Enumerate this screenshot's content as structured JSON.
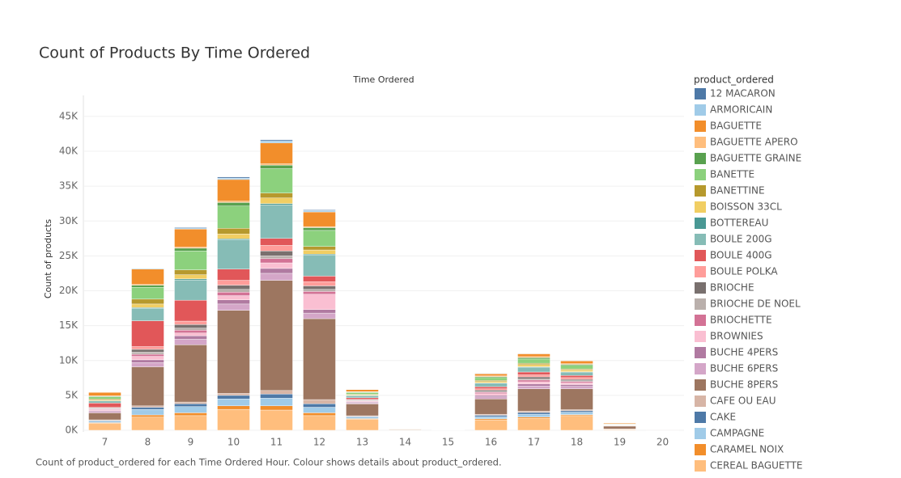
{
  "chart_data": {
    "type": "stacked_bar",
    "title": "Count of Products By Time Ordered",
    "x_label": "Time Ordered",
    "y_label": "Count of products",
    "legend_title": "product_ordered",
    "caption": "Count of product_ordered for each Time Ordered Hour.  Colour shows details about product_ordered.",
    "categories": [
      "7",
      "8",
      "9",
      "10",
      "11",
      "12",
      "13",
      "14",
      "15",
      "16",
      "17",
      "18",
      "19",
      "20"
    ],
    "ylim": [
      0,
      48000
    ],
    "yticks": [
      {
        "value": 0,
        "label": "0K"
      },
      {
        "value": 5000,
        "label": "5K"
      },
      {
        "value": 10000,
        "label": "10K"
      },
      {
        "value": 15000,
        "label": "15K"
      },
      {
        "value": 20000,
        "label": "20K"
      },
      {
        "value": 25000,
        "label": "25K"
      },
      {
        "value": 30000,
        "label": "30K"
      },
      {
        "value": 35000,
        "label": "35K"
      },
      {
        "value": 40000,
        "label": "40K"
      },
      {
        "value": 45000,
        "label": "45K"
      }
    ],
    "grid": true,
    "legend": "right",
    "series": [
      {
        "name": "12 MACARON",
        "color": "#4e79a7",
        "values": [
          0,
          50,
          100,
          150,
          150,
          100,
          20,
          0,
          0,
          30,
          40,
          30,
          0,
          0
        ]
      },
      {
        "name": "ARMORICAIN",
        "color": "#a0cbe8",
        "values": [
          0,
          100,
          150,
          200,
          300,
          200,
          30,
          0,
          0,
          50,
          60,
          50,
          0,
          0
        ]
      },
      {
        "name": "BAGUETTE",
        "color": "#f28e2b",
        "values": [
          500,
          2200,
          2600,
          3100,
          3000,
          2100,
          300,
          20,
          10,
          300,
          400,
          400,
          100,
          0
        ]
      },
      {
        "name": "BAGUETTE APERO",
        "color": "#ffbe7d",
        "values": [
          50,
          100,
          150,
          200,
          200,
          150,
          50,
          0,
          0,
          100,
          150,
          100,
          0,
          0
        ]
      },
      {
        "name": "BAGUETTE GRAINE",
        "color": "#59a14f",
        "values": [
          100,
          300,
          400,
          500,
          500,
          400,
          80,
          0,
          0,
          150,
          200,
          150,
          20,
          0
        ]
      },
      {
        "name": "BANETTE",
        "color": "#8cd17d",
        "values": [
          300,
          1700,
          2700,
          3200,
          3500,
          2300,
          250,
          20,
          10,
          400,
          600,
          500,
          50,
          0
        ]
      },
      {
        "name": "BANETTINE",
        "color": "#b6992d",
        "values": [
          150,
          700,
          700,
          800,
          700,
          500,
          80,
          0,
          0,
          150,
          200,
          150,
          20,
          0
        ]
      },
      {
        "name": "BOISSON 33CL",
        "color": "#f1ce63",
        "values": [
          100,
          500,
          600,
          700,
          800,
          600,
          100,
          10,
          0,
          200,
          300,
          250,
          20,
          0
        ]
      },
      {
        "name": "BOTTEREAU",
        "color": "#499894",
        "values": [
          30,
          100,
          150,
          150,
          200,
          150,
          20,
          0,
          0,
          50,
          60,
          50,
          0,
          0
        ]
      },
      {
        "name": "BOULE 200G",
        "color": "#86bcb6",
        "values": [
          300,
          1800,
          2900,
          4200,
          4800,
          3000,
          300,
          10,
          5,
          500,
          700,
          500,
          50,
          0
        ]
      },
      {
        "name": "BOULE 400G",
        "color": "#e15759",
        "values": [
          600,
          3700,
          3000,
          1600,
          1000,
          800,
          200,
          10,
          5,
          300,
          400,
          300,
          30,
          0
        ]
      },
      {
        "name": "BOULE POLKA",
        "color": "#ff9d9a",
        "values": [
          100,
          400,
          500,
          700,
          800,
          600,
          100,
          0,
          0,
          200,
          300,
          250,
          20,
          0
        ]
      },
      {
        "name": "BRIOCHE",
        "color": "#79706e",
        "values": [
          100,
          400,
          500,
          600,
          700,
          500,
          100,
          0,
          0,
          200,
          300,
          200,
          20,
          0
        ]
      },
      {
        "name": "BRIOCHE DE NOEL",
        "color": "#bab0ac",
        "values": [
          50,
          300,
          300,
          400,
          400,
          300,
          50,
          0,
          0,
          100,
          150,
          100,
          0,
          0
        ]
      },
      {
        "name": "BRIOCHETTE",
        "color": "#d37295",
        "values": [
          100,
          300,
          400,
          500,
          600,
          400,
          80,
          0,
          0,
          200,
          250,
          200,
          20,
          0
        ]
      },
      {
        "name": "BROWNIES",
        "color": "#fabfd2",
        "values": [
          150,
          500,
          400,
          600,
          800,
          2200,
          100,
          0,
          0,
          250,
          300,
          250,
          20,
          0
        ]
      },
      {
        "name": "BUCHE 4PERS",
        "color": "#b07aa1",
        "values": [
          100,
          400,
          500,
          600,
          700,
          500,
          100,
          0,
          0,
          200,
          300,
          250,
          20,
          0
        ]
      },
      {
        "name": "BUCHE 6PERS",
        "color": "#d4a6c8",
        "values": [
          200,
          600,
          800,
          900,
          1000,
          800,
          150,
          10,
          0,
          300,
          400,
          350,
          30,
          0
        ]
      },
      {
        "name": "BUCHE 8PERS",
        "color": "#9d7660",
        "values": [
          1000,
          5600,
          8200,
          11900,
          15800,
          11600,
          1700,
          80,
          40,
          2200,
          3200,
          3000,
          400,
          20
        ]
      },
      {
        "name": "CAFE OU EAU",
        "color": "#d7b5a6",
        "values": [
          100,
          200,
          250,
          300,
          500,
          600,
          100,
          0,
          0,
          150,
          200,
          150,
          20,
          0
        ]
      },
      {
        "name": "CAKE",
        "color": "#4e79a7",
        "values": [
          100,
          300,
          400,
          500,
          600,
          500,
          100,
          0,
          0,
          200,
          250,
          200,
          20,
          0
        ]
      },
      {
        "name": "CAMPAGNE",
        "color": "#a0cbe8",
        "values": [
          200,
          800,
          900,
          1000,
          1100,
          800,
          200,
          10,
          0,
          300,
          400,
          350,
          30,
          0
        ]
      },
      {
        "name": "CARAMEL NOIX",
        "color": "#f28e2b",
        "values": [
          100,
          300,
          400,
          500,
          600,
          400,
          80,
          0,
          0,
          150,
          200,
          150,
          20,
          0
        ]
      },
      {
        "name": "CEREAL BAGUETTE",
        "color": "#ffbe7d",
        "values": [
          1000,
          1900,
          2100,
          3000,
          2900,
          2100,
          1600,
          60,
          20,
          1500,
          1700,
          2100,
          100,
          0
        ]
      }
    ]
  }
}
